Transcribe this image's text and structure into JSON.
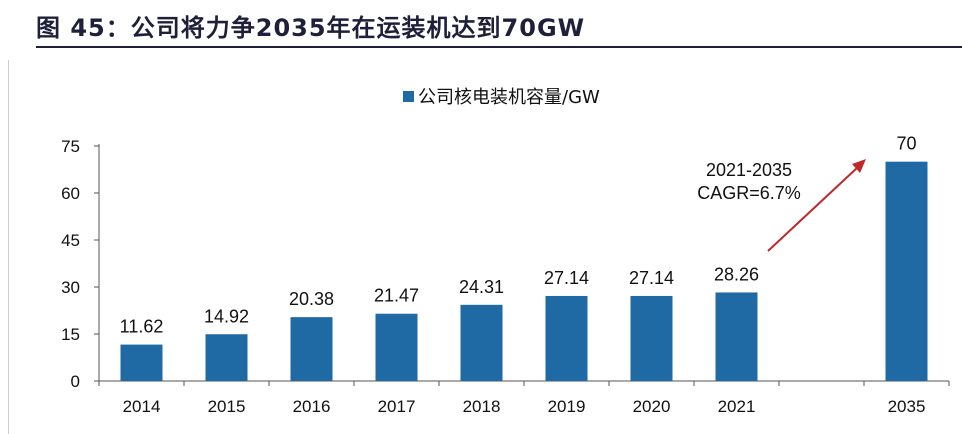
{
  "title": "图 45：公司将力争2035年在运装机达到70GW",
  "colors": {
    "bar": "#1f6aa5",
    "arrow": "#c0282a",
    "axis": "#555555",
    "title_rule": "#1f1f3a"
  },
  "chart_data": {
    "type": "bar",
    "title": "",
    "legend": "公司核电装机容量/GW",
    "legend_position": "top-center",
    "categories": [
      "2014",
      "2015",
      "2016",
      "2017",
      "2018",
      "2019",
      "2020",
      "2021",
      "",
      "2035"
    ],
    "values": [
      11.62,
      14.92,
      20.38,
      21.47,
      24.31,
      27.14,
      27.14,
      28.26,
      null,
      70
    ],
    "data_labels": [
      "11.62",
      "14.92",
      "20.38",
      "21.47",
      "24.31",
      "27.14",
      "27.14",
      "28.26",
      "",
      "70"
    ],
    "ylim": [
      0,
      75
    ],
    "yticks": [
      0,
      15,
      30,
      45,
      60,
      75
    ],
    "xlabel": "",
    "ylabel": "",
    "grid": false,
    "annotation": {
      "lines": [
        "2021-2035",
        "CAGR=6.7%"
      ],
      "from_category": "2021",
      "to_category": "2035"
    }
  }
}
